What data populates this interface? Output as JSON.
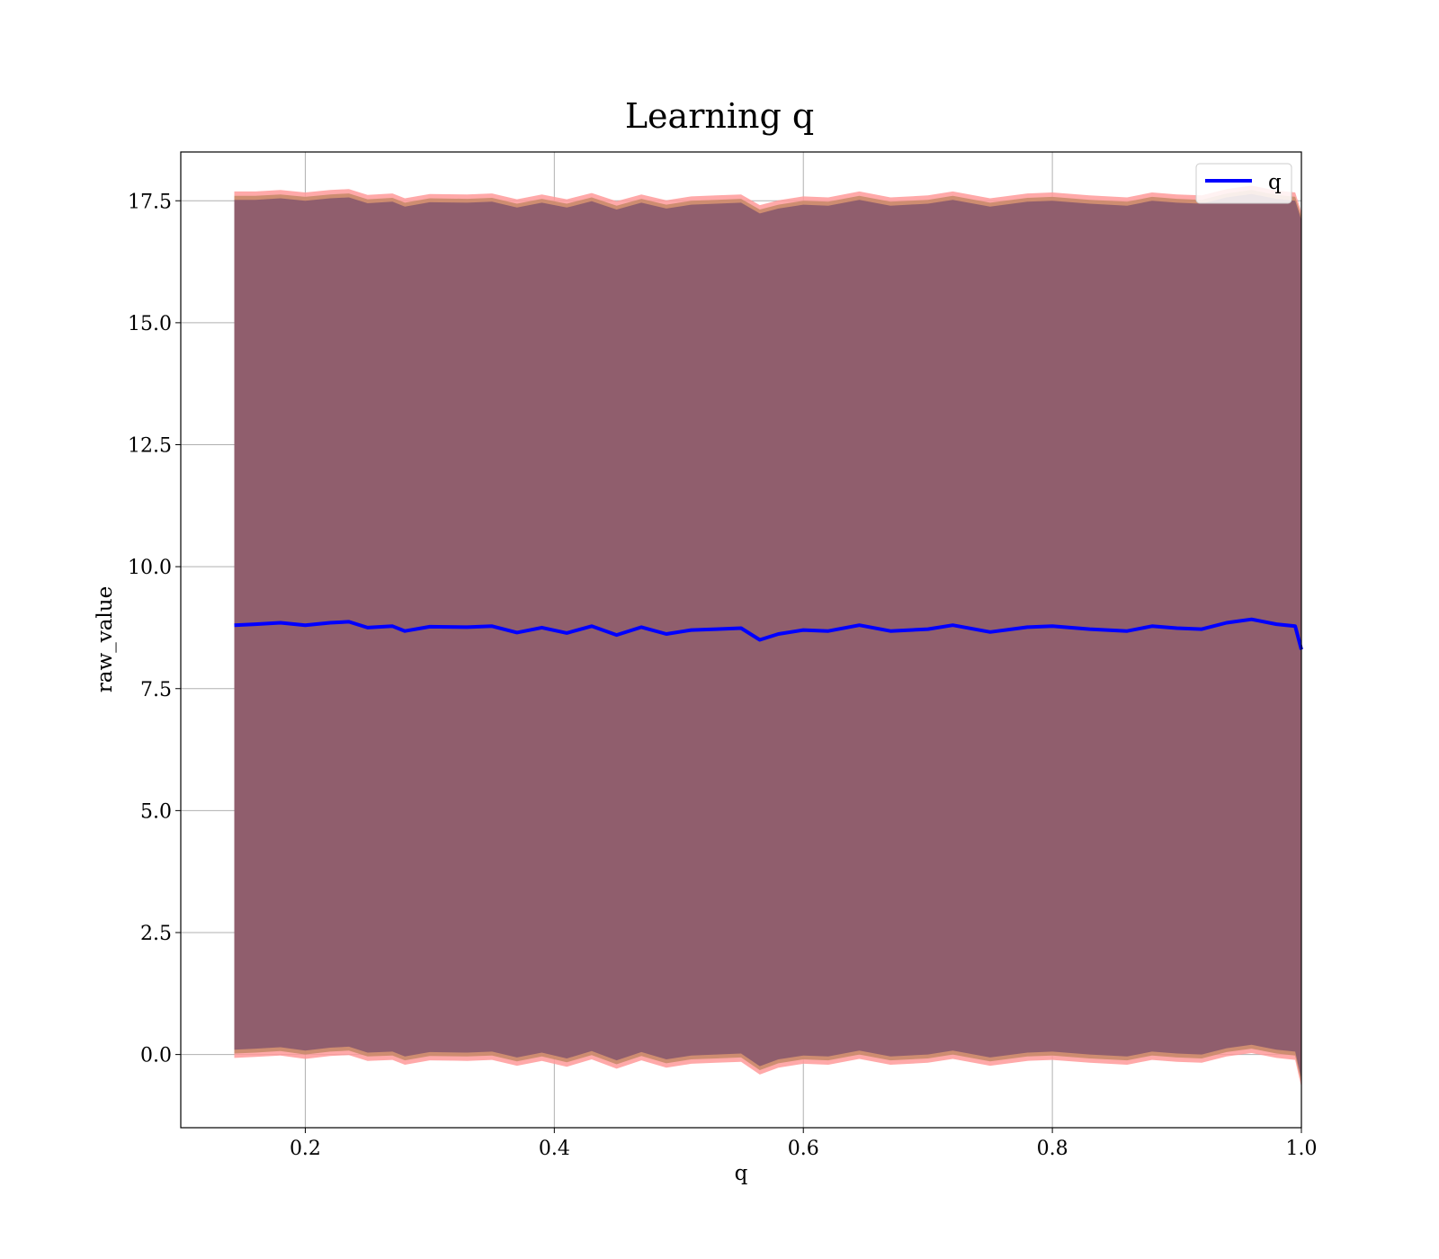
{
  "chart_data": {
    "type": "area",
    "title": "Learning q",
    "xlabel": "q",
    "ylabel": "raw_value",
    "xlim": [
      0.1,
      1.0
    ],
    "ylim": [
      -1.5,
      18.5
    ],
    "x_ticks": [
      "0.2",
      "0.4",
      "0.6",
      "0.8",
      "1.0"
    ],
    "y_ticks": [
      "0.0",
      "2.5",
      "5.0",
      "7.5",
      "10.0",
      "12.5",
      "15.0",
      "17.5"
    ],
    "grid": true,
    "legend": {
      "position": "top-right",
      "entries": [
        "q"
      ]
    },
    "colors": {
      "line": "#0000ff",
      "band_inner": "#8b5a6c",
      "band_mid": "#c98a6a",
      "band_outer": "#ff9a9a",
      "grid": "#b0b0b0"
    },
    "series": [
      {
        "name": "q",
        "x": [
          0.143,
          0.16,
          0.18,
          0.2,
          0.22,
          0.235,
          0.25,
          0.27,
          0.28,
          0.3,
          0.33,
          0.35,
          0.37,
          0.39,
          0.41,
          0.43,
          0.45,
          0.47,
          0.49,
          0.51,
          0.53,
          0.55,
          0.565,
          0.58,
          0.6,
          0.62,
          0.645,
          0.67,
          0.7,
          0.72,
          0.75,
          0.78,
          0.8,
          0.83,
          0.86,
          0.88,
          0.9,
          0.92,
          0.94,
          0.96,
          0.98,
          0.995,
          1.0
        ],
        "y": [
          8.8,
          8.82,
          8.85,
          8.8,
          8.85,
          8.87,
          8.75,
          8.78,
          8.68,
          8.77,
          8.76,
          8.78,
          8.65,
          8.75,
          8.64,
          8.78,
          8.6,
          8.76,
          8.62,
          8.7,
          8.72,
          8.74,
          8.5,
          8.62,
          8.7,
          8.68,
          8.8,
          8.68,
          8.72,
          8.8,
          8.66,
          8.76,
          8.78,
          8.72,
          8.68,
          8.78,
          8.74,
          8.72,
          8.85,
          8.92,
          8.82,
          8.78,
          8.3
        ],
        "lower": [
          0.1,
          0.12,
          0.15,
          0.08,
          0.14,
          0.16,
          0.04,
          0.06,
          -0.04,
          0.05,
          0.04,
          0.06,
          -0.06,
          0.04,
          -0.08,
          0.07,
          -0.12,
          0.05,
          -0.1,
          -0.02,
          0.0,
          0.02,
          -0.24,
          -0.1,
          -0.02,
          -0.04,
          0.08,
          -0.04,
          0.0,
          0.08,
          -0.06,
          0.04,
          0.06,
          0.0,
          -0.04,
          0.06,
          0.02,
          0.0,
          0.13,
          0.2,
          0.1,
          0.06,
          -0.5
        ],
        "upper": [
          17.52,
          17.52,
          17.55,
          17.5,
          17.55,
          17.57,
          17.45,
          17.48,
          17.38,
          17.47,
          17.46,
          17.48,
          17.36,
          17.46,
          17.36,
          17.49,
          17.32,
          17.46,
          17.34,
          17.42,
          17.44,
          17.46,
          17.24,
          17.34,
          17.42,
          17.4,
          17.52,
          17.4,
          17.44,
          17.52,
          17.38,
          17.48,
          17.5,
          17.44,
          17.4,
          17.5,
          17.46,
          17.44,
          17.57,
          17.64,
          17.54,
          17.5,
          17.1
        ]
      }
    ]
  }
}
